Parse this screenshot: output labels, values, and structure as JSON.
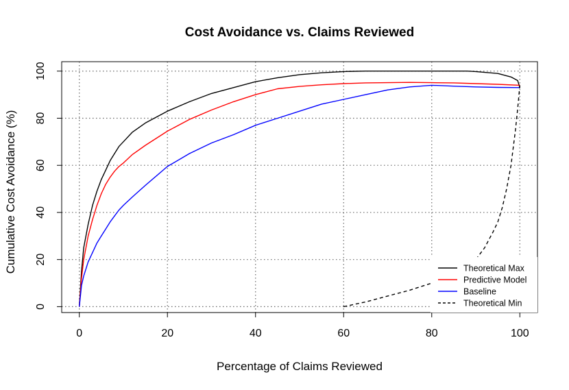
{
  "chart_data": {
    "type": "line",
    "title": "Cost Avoidance vs. Claims Reviewed",
    "xlabel": "Percentage of Claims Reviewed",
    "ylabel": "Cumulative Cost Avoidance (%)",
    "xlim": [
      -4,
      104
    ],
    "ylim": [
      -2.5,
      104
    ],
    "xticks": [
      0,
      20,
      40,
      60,
      80,
      100
    ],
    "yticks": [
      0,
      20,
      40,
      60,
      80,
      100
    ],
    "xtick_labels": [
      "0",
      "20",
      "40",
      "60",
      "80",
      "100"
    ],
    "ytick_labels": [
      "0",
      "20",
      "40",
      "60",
      "80",
      "100"
    ],
    "grid": true,
    "legend_position": "bottom-right",
    "series": [
      {
        "name": "Theoretical Max",
        "color": "#000000",
        "dash": "solid",
        "x": [
          0,
          0.5,
          1,
          2,
          3,
          4,
          5,
          6,
          7,
          8,
          9,
          10,
          12,
          15,
          20,
          25,
          30,
          35,
          40,
          45,
          50,
          55,
          60,
          65,
          70,
          75,
          80,
          85,
          88,
          90,
          95,
          98,
          99.5,
          100
        ],
        "y": [
          0,
          15,
          25,
          35,
          43,
          49,
          54,
          58,
          62,
          65,
          68,
          70,
          74,
          78,
          83,
          87,
          90.5,
          93,
          95.5,
          97.2,
          98.5,
          99.3,
          99.8,
          100,
          100,
          100,
          100,
          100,
          100,
          99.8,
          99,
          97.5,
          96,
          93
        ]
      },
      {
        "name": "Predictive Model",
        "color": "#ff0000",
        "dash": "solid",
        "x": [
          0,
          0.5,
          1,
          2,
          3,
          4,
          5,
          6,
          7,
          8,
          9,
          10,
          12,
          15,
          20,
          25,
          30,
          35,
          40,
          45,
          50,
          55,
          60,
          65,
          70,
          75,
          80,
          85,
          90,
          95,
          100
        ],
        "y": [
          0,
          12,
          20,
          30,
          37,
          43,
          48,
          52,
          55,
          57.5,
          59.5,
          61,
          64.5,
          68.5,
          74.5,
          79.5,
          83.5,
          87,
          90,
          92.5,
          93.5,
          94.2,
          94.7,
          95,
          95.1,
          95.2,
          95.1,
          95,
          94.7,
          94.4,
          94
        ]
      },
      {
        "name": "Baseline",
        "color": "#0000ff",
        "dash": "solid",
        "x": [
          0,
          0.5,
          1,
          2,
          3,
          4,
          5,
          6,
          7,
          8,
          9,
          10,
          12,
          15,
          20,
          25,
          30,
          35,
          40,
          45,
          50,
          55,
          60,
          65,
          70,
          75,
          80,
          85,
          90,
          95,
          100
        ],
        "y": [
          0,
          9,
          13,
          19,
          23,
          27,
          30,
          33,
          36,
          38.5,
          41,
          43,
          46.5,
          51.5,
          59.5,
          65,
          69.5,
          73,
          77,
          80,
          83,
          86,
          88,
          90,
          92,
          93.3,
          94,
          93.6,
          93.3,
          93.1,
          93
        ]
      },
      {
        "name": "Theoretical Min",
        "color": "#000000",
        "dash": "dashed",
        "x": [
          60,
          65,
          70,
          75,
          80,
          85,
          90,
          92,
          94,
          95,
          96,
          97,
          98,
          99,
          99.5,
          100
        ],
        "y": [
          0,
          2,
          4.5,
          7,
          10,
          13.5,
          20,
          25,
          32,
          36,
          42,
          50,
          60,
          75,
          84,
          94
        ]
      }
    ]
  }
}
